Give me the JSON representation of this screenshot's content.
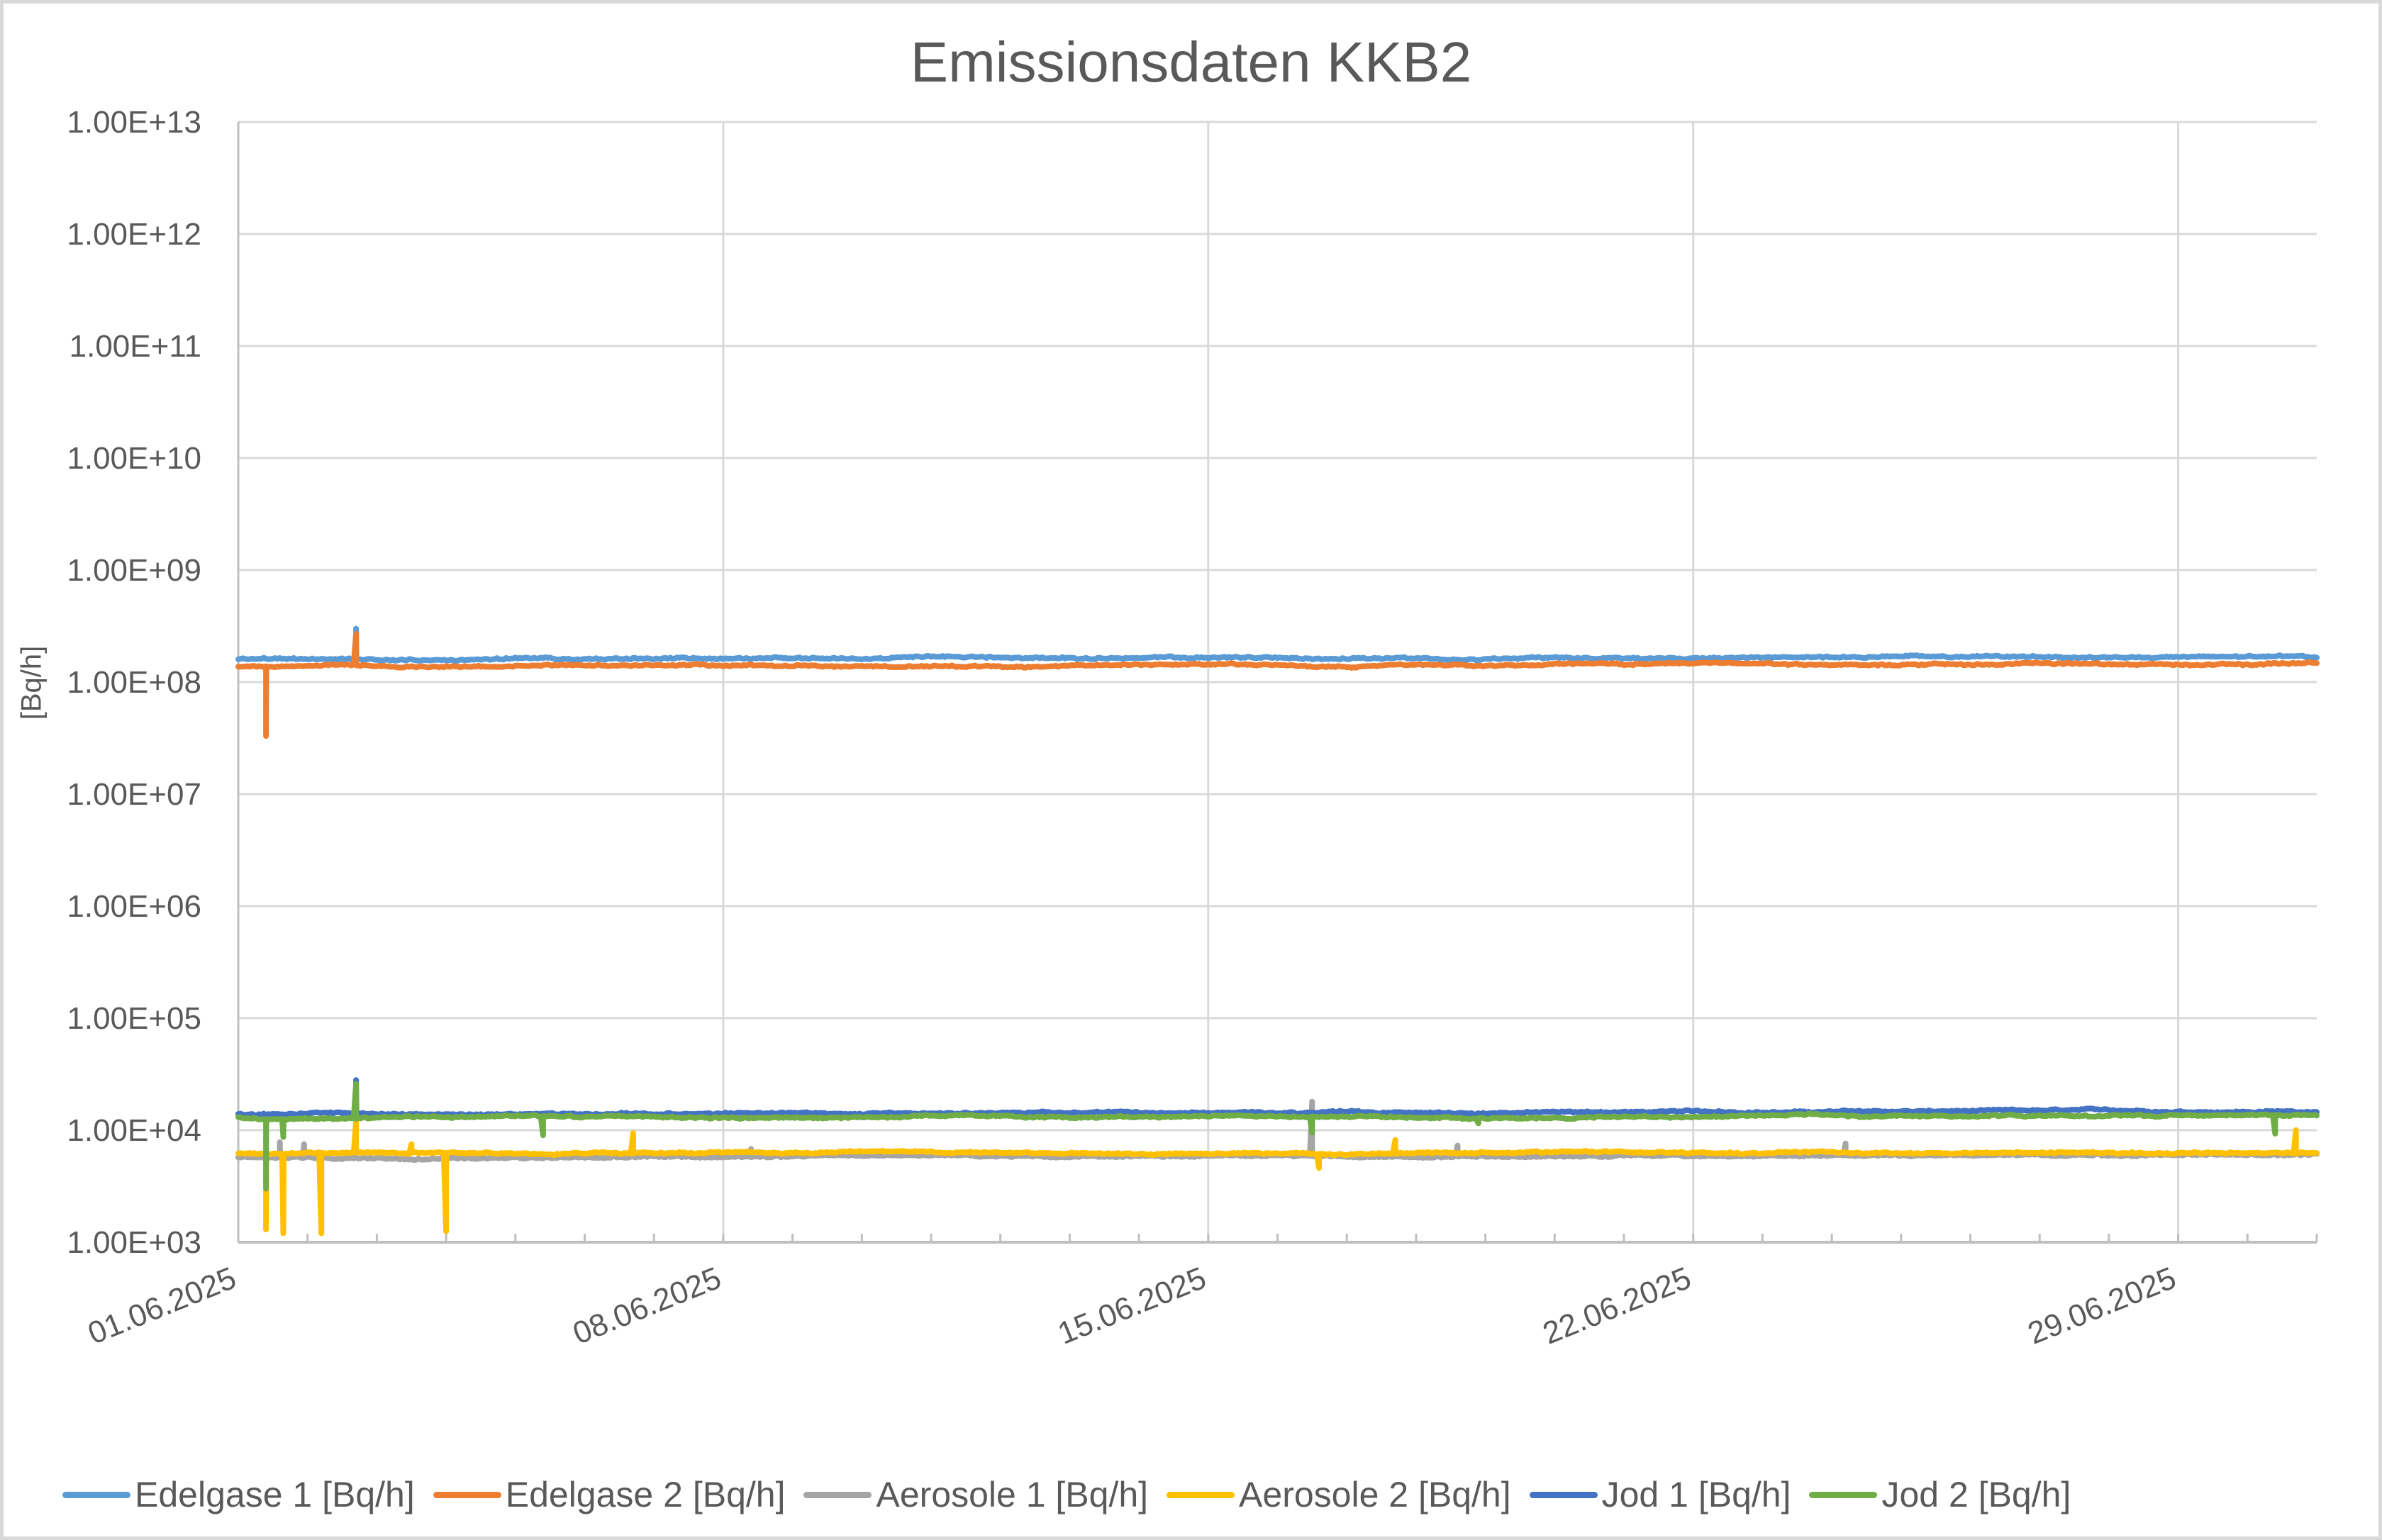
{
  "chart": {
    "title": "Emissionsdaten KKB2",
    "y_axis_title": "[Bq/h]",
    "y_ticks": [
      "1.00E+03",
      "1.00E+04",
      "1.00E+05",
      "1.00E+06",
      "1.00E+07",
      "1.00E+08",
      "1.00E+09",
      "1.00E+10",
      "1.00E+11",
      "1.00E+12",
      "1.00E+13"
    ],
    "x_ticks": [
      {
        "label": "01.06.2025",
        "day": 0
      },
      {
        "label": "08.06.2025",
        "day": 7
      },
      {
        "label": "15.06.2025",
        "day": 14
      },
      {
        "label": "22.06.2025",
        "day": 21
      },
      {
        "label": "29.06.2025",
        "day": 28
      }
    ],
    "colors": {
      "gridline": "#d9d9d9",
      "axis": "#bfbfbf",
      "text": "#595959",
      "border": "#d9d9d9"
    }
  },
  "legend": [
    {
      "label": "Edelgase 1 [Bq/h]",
      "color": "#5b9bd5"
    },
    {
      "label": "Edelgase 2 [Bq/h]",
      "color": "#ed7d31"
    },
    {
      "label": "Aerosole 1 [Bq/h]",
      "color": "#a5a5a5"
    },
    {
      "label": "Aerosole 2 [Bq/h]",
      "color": "#ffc000"
    },
    {
      "label": "Jod 1 [Bq/h]",
      "color": "#4472c4"
    },
    {
      "label": "Jod 2 [Bq/h]",
      "color": "#70ad47"
    }
  ],
  "chart_data": {
    "type": "line",
    "title": "Emissionsdaten KKB2",
    "xlabel": "",
    "ylabel": "[Bq/h]",
    "y_scale": "log",
    "ylim": [
      1000,
      10000000000000
    ],
    "x_range": [
      "01.06.2025",
      "01.07.2025"
    ],
    "x_tick_labels": [
      "01.06.2025",
      "08.06.2025",
      "15.06.2025",
      "22.06.2025",
      "29.06.2025"
    ],
    "y_tick_labels": [
      "1.00E+03",
      "1.00E+04",
      "1.00E+05",
      "1.00E+06",
      "1.00E+07",
      "1.00E+08",
      "1.00E+09",
      "1.00E+10",
      "1.00E+11",
      "1.00E+12",
      "1.00E+13"
    ],
    "grid": true,
    "legend_position": "bottom",
    "series": [
      {
        "name": "Edelgase 1 [Bq/h]",
        "color": "#5b9bd5",
        "start": 160000000,
        "end": 167000000,
        "events": [
          {
            "day": 1.7,
            "value": 300000000
          }
        ]
      },
      {
        "name": "Edelgase 2 [Bq/h]",
        "color": "#ed7d31",
        "start": 138000000,
        "end": 146000000,
        "events": [
          {
            "day": 0.4,
            "value": 33000000
          },
          {
            "day": 1.7,
            "value": 270000000
          }
        ]
      },
      {
        "name": "Aerosole 1 [Bq/h]",
        "color": "#a5a5a5",
        "start": 5700,
        "end": 6000,
        "events": [
          {
            "day": 0.6,
            "value": 7800
          },
          {
            "day": 0.95,
            "value": 7500
          },
          {
            "day": 7.4,
            "value": 6800
          },
          {
            "day": 15.5,
            "value": 18000
          },
          {
            "day": 17.6,
            "value": 7300
          },
          {
            "day": 23.2,
            "value": 7600
          }
        ]
      },
      {
        "name": "Aerosole 2 [Bq/h]",
        "color": "#ffc000",
        "start": 6200,
        "end": 6300,
        "events": [
          {
            "day": 0.4,
            "value": 1300
          },
          {
            "day": 0.65,
            "value": 1200
          },
          {
            "day": 1.2,
            "value": 1200
          },
          {
            "day": 1.7,
            "value": 12000
          },
          {
            "day": 2.5,
            "value": 7500
          },
          {
            "day": 3.0,
            "value": 1250
          },
          {
            "day": 5.7,
            "value": 9400
          },
          {
            "day": 15.6,
            "value": 4600
          },
          {
            "day": 16.7,
            "value": 8200
          },
          {
            "day": 29.7,
            "value": 10000
          }
        ]
      },
      {
        "name": "Jod 1 [Bq/h]",
        "color": "#4472c4",
        "start": 14000,
        "end": 14800,
        "events": [
          {
            "day": 1.7,
            "value": 28000
          }
        ]
      },
      {
        "name": "Jod 2 [Bq/h]",
        "color": "#70ad47",
        "start": 13000,
        "end": 13600,
        "events": [
          {
            "day": 0.4,
            "value": 3000
          },
          {
            "day": 0.65,
            "value": 8700
          },
          {
            "day": 1.7,
            "value": 26000
          },
          {
            "day": 4.4,
            "value": 9000
          },
          {
            "day": 15.5,
            "value": 9500
          },
          {
            "day": 17.9,
            "value": 11500
          },
          {
            "day": 29.4,
            "value": 9300
          }
        ]
      }
    ]
  }
}
